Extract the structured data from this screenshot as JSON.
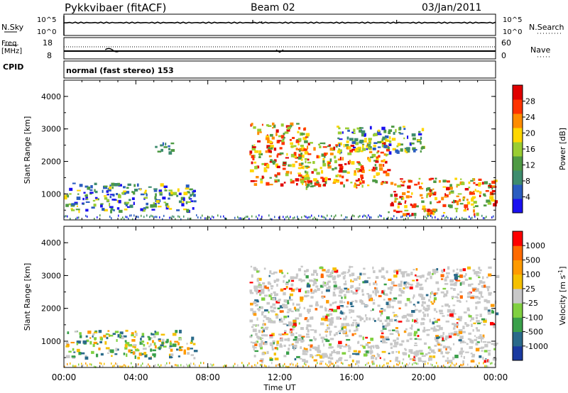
{
  "header": {
    "station": "Pykkvibaer (fitACF)",
    "beam": "Beam 02",
    "date": "03/Jan/2011"
  },
  "nsky_panel": {
    "left_label": "N.Sky",
    "left_ticks": [
      "10^5",
      "10^0"
    ],
    "right_label": "N.Search",
    "right_ticks": [
      "10^5",
      "10^0"
    ]
  },
  "freq_panel": {
    "left_label_1": "Freq.",
    "left_label_2": "[MHz]",
    "left_ticks": [
      "18",
      "8"
    ],
    "right_label": "Nave",
    "right_ticks": [
      "60",
      "0"
    ]
  },
  "cpid": {
    "label": "CPID",
    "mode": "normal (fast stereo) 153"
  },
  "colors": {
    "power_scale": [
      "#1a10f0",
      "#2a5cc0",
      "#3e8c6e",
      "#4e9a44",
      "#9acd32",
      "#ffd700",
      "#ff8c00",
      "#ff3300",
      "#e00000"
    ],
    "velocity_scale": [
      "#ff0000",
      "#ff6a00",
      "#ff9a00",
      "#f5c000",
      "#c8c8c8",
      "#80d040",
      "#3aa04a",
      "#2a6a8a",
      "#1a3aa0"
    ]
  },
  "chart_data": [
    {
      "type": "heatmap",
      "name": "power",
      "ylabel": "Slant Range [km]",
      "ylim": [
        200,
        4500
      ],
      "yticks": [
        "1000",
        "2000",
        "3000",
        "4000"
      ],
      "xlim_hours": [
        0,
        24
      ],
      "colorbar": {
        "label": "Power [dB]",
        "range": [
          0,
          32
        ],
        "ticks": [
          "4",
          "8",
          "12",
          "16",
          "20",
          "24",
          "28"
        ]
      },
      "echo_regions": [
        {
          "t": [
            0.0,
            7.3
          ],
          "range_km": [
            500,
            1350
          ],
          "level": "moderate"
        },
        {
          "t": [
            5.0,
            6.0
          ],
          "range_km": [
            2200,
            2600
          ],
          "level": "weak"
        },
        {
          "t": [
            10.3,
            13.5
          ],
          "range_km": [
            1300,
            3200
          ],
          "level": "strong"
        },
        {
          "t": [
            13.0,
            18.0
          ],
          "range_km": [
            1200,
            2600
          ],
          "level": "strong"
        },
        {
          "t": [
            15.0,
            20.0
          ],
          "range_km": [
            2300,
            3100
          ],
          "level": "moderate"
        },
        {
          "t": [
            18.0,
            24.0
          ],
          "range_km": [
            400,
            1500
          ],
          "level": "strong"
        }
      ]
    },
    {
      "type": "heatmap",
      "name": "velocity",
      "ylabel": "Slant Range [km]",
      "ylim": [
        200,
        4500
      ],
      "yticks": [
        "1000",
        "2000",
        "3000",
        "4000"
      ],
      "xlabel": "Time UT",
      "xticks": [
        "00:00",
        "04:00",
        "08:00",
        "12:00",
        "16:00",
        "20:00",
        "00:00"
      ],
      "xlim_hours": [
        0,
        24
      ],
      "colorbar": {
        "label": "Velocity [m s^-1]",
        "ticks": [
          "1000",
          "500",
          "100",
          "25",
          "-25",
          "-100",
          "-500",
          "-1000"
        ]
      },
      "echo_regions": [
        {
          "t": [
            0.0,
            7.3
          ],
          "range_km": [
            500,
            1350
          ],
          "level": "mixed"
        },
        {
          "t": [
            10.3,
            24.0
          ],
          "range_km": [
            400,
            3300
          ],
          "level": "mostly low velocity"
        }
      ]
    }
  ]
}
